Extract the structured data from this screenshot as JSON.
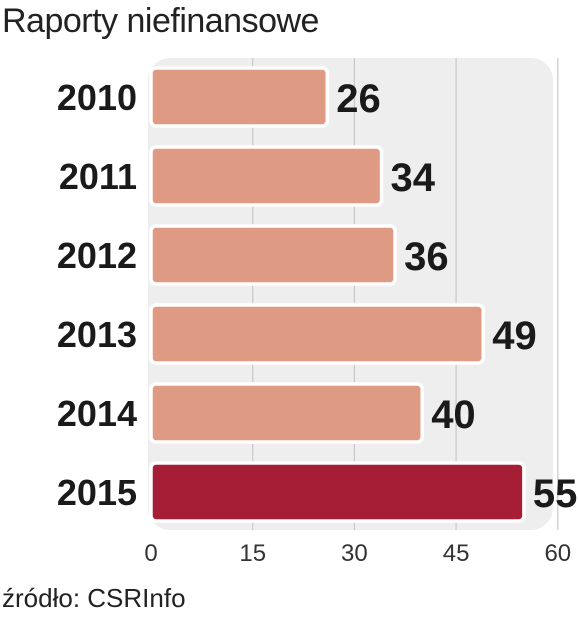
{
  "chart_data": {
    "type": "bar",
    "orientation": "horizontal",
    "title": "Raporty niefinansowe",
    "source": "źródło: CSRInfo",
    "categories": [
      "2010",
      "2011",
      "2012",
      "2013",
      "2014",
      "2015"
    ],
    "values": [
      26,
      34,
      36,
      49,
      40,
      55
    ],
    "xlim": [
      0,
      60
    ],
    "ticks": [
      "0",
      "15",
      "30",
      "45",
      "60"
    ],
    "grid": true,
    "colors": {
      "bar": "#df9a84",
      "highlight_bar": "#a51e35",
      "panel": "#eeeeee",
      "grid": "#c8c8c8"
    },
    "highlight_category": "2015"
  }
}
